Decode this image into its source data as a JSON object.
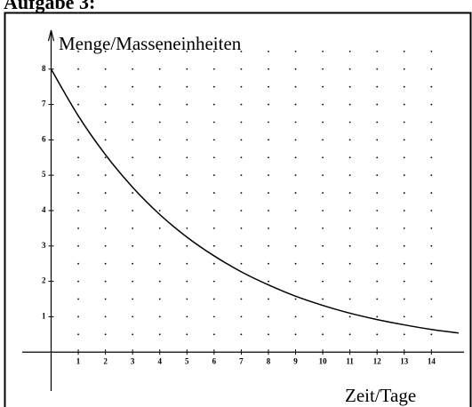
{
  "heading": "Aufgabe 3:",
  "chart_data": {
    "type": "line",
    "y_label": "Menge/Masseneinheiten",
    "x_label": "Zeit/Tage",
    "x": [
      0,
      1,
      2,
      3,
      4,
      5,
      6,
      7,
      8,
      9,
      10,
      11,
      12,
      13,
      14,
      15
    ],
    "series": [
      {
        "color": "#000000",
        "values": [
          8,
          6.68,
          5.58,
          4.66,
          3.89,
          3.25,
          2.72,
          2.27,
          1.9,
          1.58,
          1.32,
          1.1,
          0.92,
          0.77,
          0.64,
          0.54
        ]
      }
    ],
    "xlim": [
      -0.9,
      15.2
    ],
    "ylim": [
      -1.1,
      9.2
    ],
    "xticks": [
      1,
      2,
      3,
      4,
      5,
      6,
      7,
      8,
      9,
      10,
      11,
      12,
      13,
      14
    ],
    "yticks": [
      1,
      2,
      3,
      4,
      5,
      6,
      7,
      8
    ],
    "grid": true
  }
}
